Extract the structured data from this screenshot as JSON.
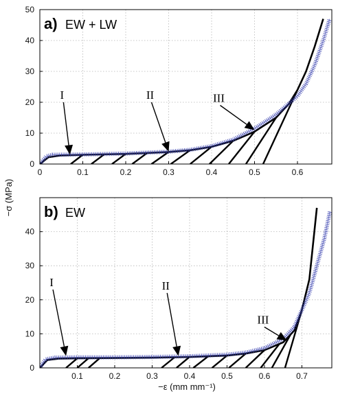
{
  "figure": {
    "ylabel": "−σ (MPa)",
    "xlabel": "−ε (mm mm⁻¹)"
  },
  "chart_data": [
    {
      "type": "line",
      "panel_letter": "a)",
      "panel_title": "EW + LW",
      "xlim": [
        0,
        0.68
      ],
      "ylim": [
        0,
        50
      ],
      "xticks": [
        0,
        0.1,
        0.2,
        0.3,
        0.4,
        0.5,
        0.6
      ],
      "xtick_labels": [
        "0",
        "0.1",
        "0.2",
        "0.3",
        "0.4",
        "0.5",
        "0.6"
      ],
      "yticks": [
        0,
        10,
        20,
        30,
        40,
        50
      ],
      "ytick_labels": [
        "0",
        "10",
        "20",
        "30",
        "40",
        "50"
      ],
      "grid": true,
      "colors": {
        "cyclic": "#000000",
        "monotonic": "#3b43b0"
      },
      "series": [
        {
          "style": "cyclic",
          "envelope": [
            [
              0,
              0
            ],
            [
              0.02,
              2.2
            ],
            [
              0.05,
              2.8
            ],
            [
              0.1,
              3.0
            ],
            [
              0.2,
              3.3
            ],
            [
              0.3,
              3.9
            ],
            [
              0.35,
              4.5
            ],
            [
              0.4,
              5.6
            ],
            [
              0.45,
              7.5
            ],
            [
              0.5,
              10.5
            ],
            [
              0.55,
              15
            ],
            [
              0.58,
              19.5
            ],
            [
              0.6,
              24
            ],
            [
              0.62,
              30
            ],
            [
              0.64,
              38
            ],
            [
              0.66,
              47
            ]
          ],
          "unloading_strains": [
            0.1,
            0.15,
            0.2,
            0.25,
            0.3,
            0.35,
            0.4,
            0.45,
            0.5,
            0.55,
            0.6
          ],
          "unload_drop": [
            0.028,
            0.03,
            0.032,
            0.035,
            0.04,
            0.045,
            0.05,
            0.055,
            0.06,
            0.07,
            0.08
          ]
        },
        {
          "style": "monotonic",
          "points": [
            [
              0,
              0
            ],
            [
              0.015,
              2.5
            ],
            [
              0.03,
              3.0
            ],
            [
              0.1,
              3.1
            ],
            [
              0.2,
              3.4
            ],
            [
              0.3,
              4.0
            ],
            [
              0.35,
              4.6
            ],
            [
              0.4,
              5.8
            ],
            [
              0.45,
              7.9
            ],
            [
              0.5,
              11.5
            ],
            [
              0.55,
              16
            ],
            [
              0.6,
              22
            ],
            [
              0.62,
              26
            ],
            [
              0.64,
              32
            ],
            [
              0.66,
              40
            ],
            [
              0.675,
              47
            ]
          ]
        }
      ],
      "annotations": [
        {
          "text": "I",
          "tail": [
            0.055,
            20
          ],
          "head": [
            0.07,
            3.0
          ]
        },
        {
          "text": "II",
          "tail": [
            0.26,
            20
          ],
          "head": [
            0.3,
            4.0
          ]
        },
        {
          "text": "III",
          "tail": [
            0.42,
            19
          ],
          "head": [
            0.5,
            11.0
          ]
        }
      ]
    },
    {
      "type": "line",
      "panel_letter": "b)",
      "panel_title": "EW",
      "xlim": [
        0,
        0.78
      ],
      "ylim": [
        0,
        50
      ],
      "xticks": [
        0.1,
        0.2,
        0.3,
        0.4,
        0.5,
        0.6,
        0.7
      ],
      "xtick_labels": [
        "0.1",
        "0.2",
        "0.3",
        "0.4",
        "0.5",
        "0.6",
        "0.7"
      ],
      "yticks": [
        0,
        10,
        20,
        30,
        40
      ],
      "ytick_labels": [
        "0",
        "10",
        "20",
        "30",
        "40"
      ],
      "grid": true,
      "colors": {
        "cyclic": "#000000",
        "monotonic": "#3b43b0"
      },
      "series": [
        {
          "style": "cyclic",
          "envelope": [
            [
              0,
              0
            ],
            [
              0.02,
              2.3
            ],
            [
              0.05,
              2.7
            ],
            [
              0.1,
              2.8
            ],
            [
              0.2,
              2.9
            ],
            [
              0.3,
              3.0
            ],
            [
              0.4,
              3.2
            ],
            [
              0.5,
              3.6
            ],
            [
              0.55,
              4.2
            ],
            [
              0.6,
              5.2
            ],
            [
              0.65,
              7.5
            ],
            [
              0.68,
              11
            ],
            [
              0.7,
              17
            ],
            [
              0.72,
              26
            ],
            [
              0.74,
              47
            ]
          ],
          "unloading_strains": [
            0.1,
            0.13,
            0.16,
            0.36,
            0.4,
            0.45,
            0.5,
            0.55,
            0.6,
            0.64,
            0.67,
            0.7
          ],
          "unload_drop": [
            0.03,
            0.03,
            0.03,
            0.035,
            0.035,
            0.04,
            0.04,
            0.045,
            0.05,
            0.05,
            0.05,
            0.045
          ]
        },
        {
          "style": "monotonic",
          "points": [
            [
              0,
              0
            ],
            [
              0.015,
              2.5
            ],
            [
              0.04,
              3.0
            ],
            [
              0.1,
              3.1
            ],
            [
              0.2,
              3.1
            ],
            [
              0.3,
              3.2
            ],
            [
              0.4,
              3.4
            ],
            [
              0.5,
              3.9
            ],
            [
              0.55,
              4.5
            ],
            [
              0.6,
              5.8
            ],
            [
              0.65,
              8.5
            ],
            [
              0.68,
              12
            ],
            [
              0.7,
              17
            ],
            [
              0.72,
              22
            ],
            [
              0.74,
              30
            ],
            [
              0.76,
              38
            ],
            [
              0.775,
              46
            ]
          ]
        }
      ],
      "annotations": [
        {
          "text": "I",
          "tail": [
            0.035,
            23
          ],
          "head": [
            0.07,
            3.5
          ]
        },
        {
          "text": "II",
          "tail": [
            0.34,
            22
          ],
          "head": [
            0.37,
            3.5
          ]
        },
        {
          "text": "III",
          "tail": [
            0.6,
            12
          ],
          "head": [
            0.66,
            8.0
          ]
        }
      ]
    }
  ]
}
